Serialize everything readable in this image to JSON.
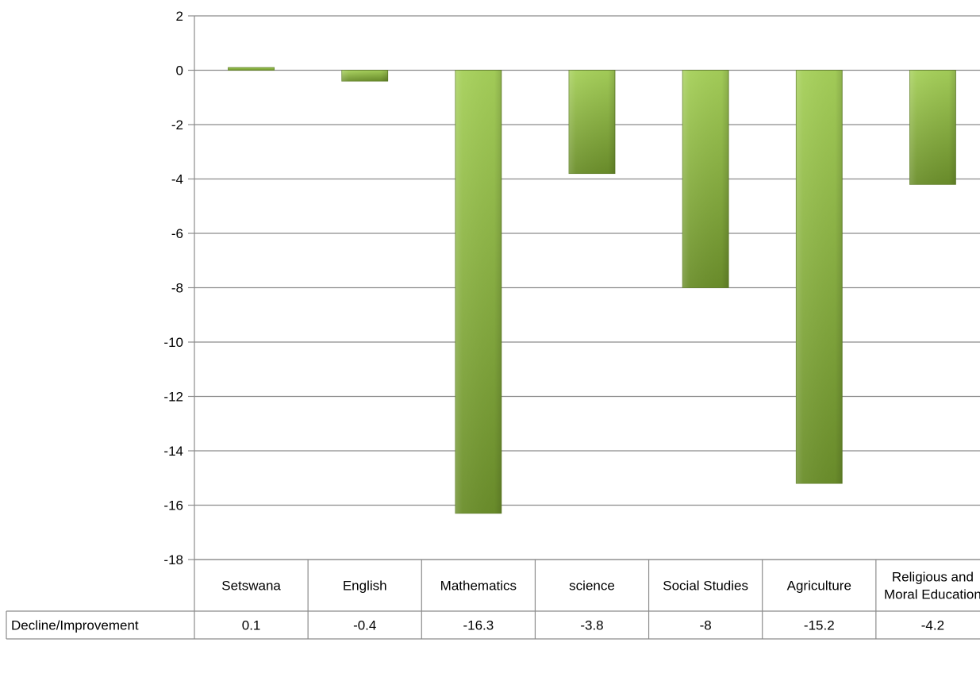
{
  "chart_data": {
    "type": "bar",
    "categories": [
      "Setswana",
      "English",
      "Mathematics",
      "science",
      "Social Studies",
      "Agriculture",
      "Religious and Moral Education"
    ],
    "series": [
      {
        "name": "Decline/Improvement",
        "values": [
          0.1,
          -0.4,
          -16.3,
          -3.8,
          -8,
          -15.2,
          -4.2
        ]
      }
    ],
    "value_labels": [
      "0.1",
      "-0.4",
      "-16.3",
      "-3.8",
      "-8",
      "-15.2",
      "-4.2"
    ],
    "ylim": [
      -18,
      2
    ],
    "yticks": [
      2,
      0,
      -2,
      -4,
      -6,
      -8,
      -10,
      -12,
      -14,
      -16,
      -18
    ],
    "ytick_labels": [
      "2",
      "0",
      "-2",
      "-4",
      "-6",
      "-8",
      "-10",
      "-12",
      "-14",
      "-16",
      "-18"
    ],
    "grid": true,
    "data_table": true,
    "title": "",
    "xlabel": "",
    "ylabel": "",
    "colors": {
      "bar_light": "#a6d05a",
      "bar_mid": "#8bb63f",
      "bar_dark": "#6b8e2b",
      "bar_edge": "#5f7f26",
      "grid": "#8c8c8c",
      "table_border": "#8c8c8c"
    }
  }
}
